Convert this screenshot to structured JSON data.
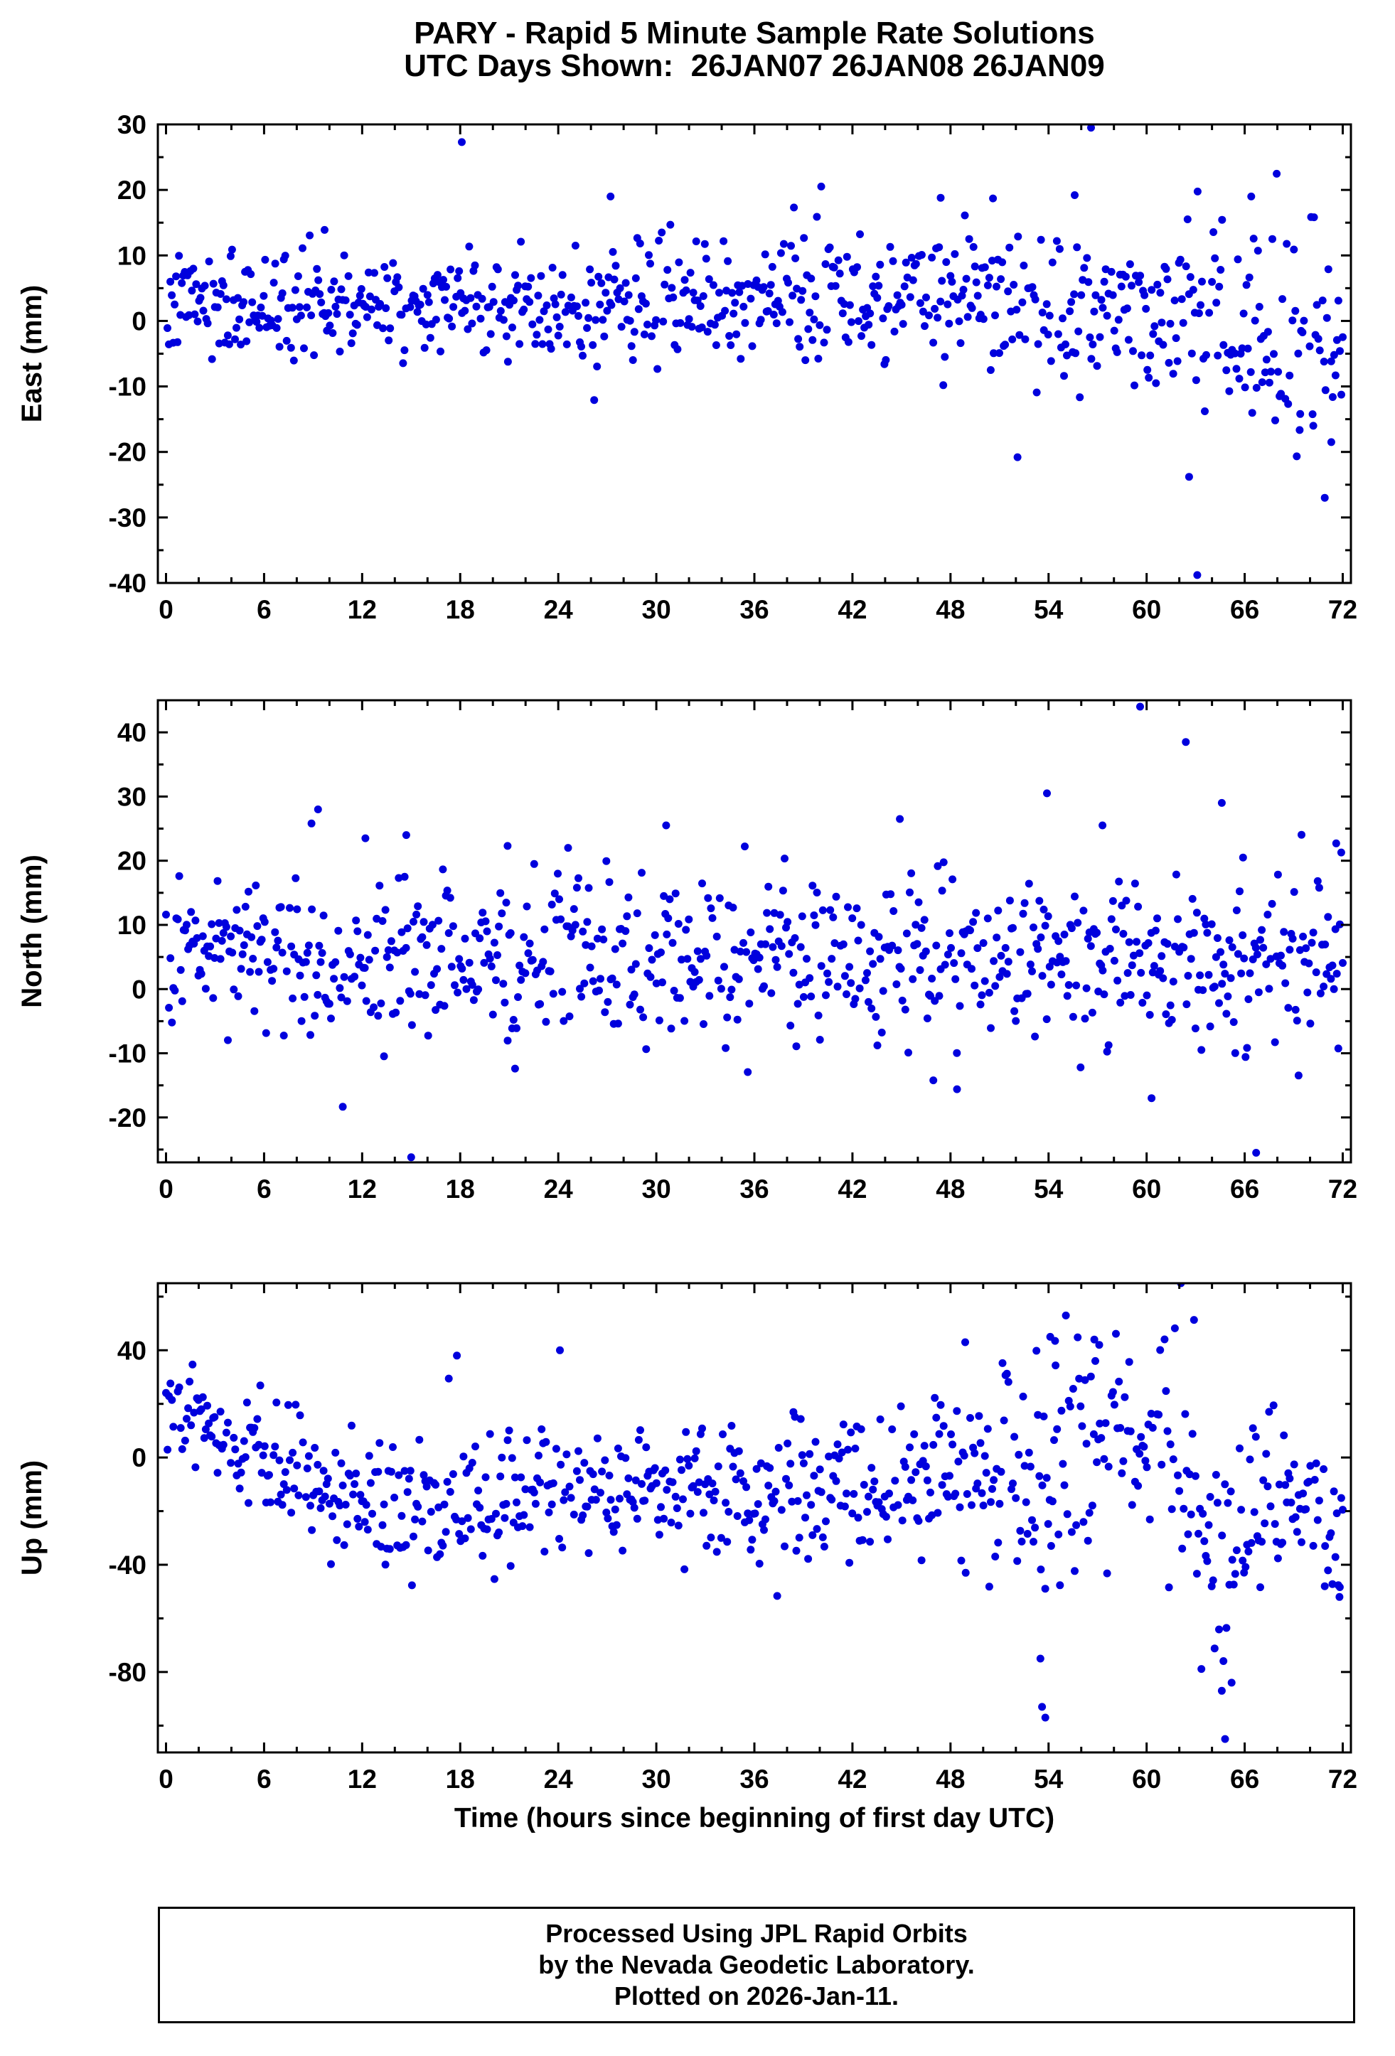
{
  "title": {
    "line1": "PARY - Rapid 5 Minute Sample Rate Solutions",
    "line2": "UTC Days Shown:  26JAN07 26JAN08 26JAN09"
  },
  "xlabel": "Time (hours since beginning of first day UTC)",
  "footer": {
    "line1": "Processed Using JPL Rapid Orbits",
    "line2": "by the Nevada Geodetic Laboratory.",
    "line3": "Plotted on 2026-Jan-11."
  },
  "style": {
    "point_color": "#0000DD",
    "point_radius": 5.5,
    "axis_color": "#000000",
    "frame_width": 3,
    "major_tick_len": 14,
    "minor_tick_len": 8
  },
  "chart_data": [
    {
      "type": "scatter",
      "name": "east",
      "ylabel": "East (mm)",
      "xlim": [
        -0.5,
        72.5
      ],
      "ylim": [
        -40,
        30
      ],
      "xticks": [
        0,
        6,
        12,
        18,
        24,
        30,
        36,
        42,
        48,
        54,
        60,
        66,
        72
      ],
      "yticks": [
        -40,
        -30,
        -20,
        -10,
        0,
        10,
        20,
        30
      ],
      "xminor": 2,
      "yminor": 5,
      "n_points": 820,
      "seed": 7,
      "drop_rate": 0.08,
      "trend": {
        "x": [
          0,
          12,
          24,
          36,
          48,
          60,
          66,
          72
        ],
        "mean": [
          2.5,
          2.5,
          2.5,
          3.5,
          3.0,
          1.5,
          0.0,
          -2.0
        ],
        "sd": [
          3.8,
          4.2,
          4.5,
          4.8,
          5.0,
          6.5,
          7.0,
          8.5
        ]
      },
      "outliers": [
        [
          18.1,
          27.3
        ],
        [
          56.6,
          29.5
        ],
        [
          63.1,
          -38.8
        ],
        [
          70.9,
          -27.0
        ],
        [
          62.6,
          -23.8
        ],
        [
          52.1,
          -20.8
        ],
        [
          27.2,
          19.0
        ],
        [
          50.6,
          18.7
        ],
        [
          55.6,
          19.2
        ],
        [
          66.4,
          19.0
        ],
        [
          9.7,
          13.9
        ],
        [
          47.4,
          18.8
        ],
        [
          71.3,
          -18.5
        ],
        [
          70.2,
          -16.0
        ],
        [
          69.4,
          -14.2
        ]
      ]
    },
    {
      "type": "scatter",
      "name": "north",
      "ylabel": "North (mm)",
      "xlim": [
        -0.5,
        72.5
      ],
      "ylim": [
        -27,
        45
      ],
      "xticks": [
        0,
        6,
        12,
        18,
        24,
        30,
        36,
        42,
        48,
        54,
        60,
        66,
        72
      ],
      "yticks": [
        -20,
        -10,
        0,
        10,
        20,
        30,
        40
      ],
      "xminor": 2,
      "yminor": 5,
      "n_points": 800,
      "seed": 13,
      "drop_rate": 0.07,
      "trend": {
        "x": [
          0,
          12,
          24,
          36,
          48,
          60,
          72
        ],
        "mean": [
          4.5,
          5.0,
          5.0,
          5.5,
          4.0,
          5.0,
          5.5
        ],
        "sd": [
          5.5,
          6.5,
          6.5,
          6.0,
          6.0,
          6.5,
          6.5
        ]
      },
      "outliers": [
        [
          9.3,
          28.0
        ],
        [
          15.0,
          -26.2
        ],
        [
          59.6,
          44.0
        ],
        [
          62.4,
          38.5
        ],
        [
          53.9,
          30.5
        ],
        [
          66.7,
          -25.5
        ],
        [
          8.9,
          25.8
        ],
        [
          14.7,
          24.0
        ],
        [
          12.2,
          23.5
        ],
        [
          57.3,
          25.5
        ],
        [
          64.6,
          29.0
        ],
        [
          30.6,
          25.5
        ],
        [
          24.6,
          22.0
        ],
        [
          20.9,
          22.3
        ],
        [
          48.4,
          -15.6
        ],
        [
          60.3,
          -17.0
        ],
        [
          44.9,
          26.5
        ],
        [
          65.9,
          20.5
        ],
        [
          71.6,
          22.7
        ]
      ]
    },
    {
      "type": "scatter",
      "name": "up",
      "ylabel": "Up (mm)",
      "xlim": [
        -0.5,
        72.5
      ],
      "ylim": [
        -110,
        65
      ],
      "xticks": [
        0,
        6,
        12,
        18,
        24,
        30,
        36,
        42,
        48,
        54,
        60,
        66,
        72
      ],
      "yticks": [
        -80,
        -40,
        0,
        40
      ],
      "xminor": 2,
      "yminor": 20,
      "n_points": 800,
      "seed": 42,
      "drop_rate": 0.07,
      "trend": {
        "x": [
          0,
          2,
          6,
          12,
          16,
          22,
          30,
          40,
          47,
          51,
          54,
          57,
          60,
          62,
          64,
          66,
          68,
          70,
          72
        ],
        "mean": [
          18,
          14,
          0,
          -18,
          -20,
          -12,
          -10,
          -15,
          -8,
          -5,
          -10,
          10,
          5,
          0,
          -35,
          -30,
          -12,
          -18,
          -35
        ],
        "sd": [
          8,
          10,
          12,
          12,
          12,
          13,
          13,
          13,
          14,
          20,
          28,
          20,
          16,
          22,
          25,
          18,
          14,
          14,
          10
        ]
      },
      "outliers": [
        [
          53.6,
          -93.0
        ],
        [
          53.8,
          -97.0
        ],
        [
          62.1,
          65.0
        ],
        [
          64.8,
          -105.0
        ],
        [
          64.6,
          -87.0
        ],
        [
          54.1,
          45.0
        ],
        [
          54.4,
          43.5
        ],
        [
          56.8,
          44.0
        ],
        [
          57.1,
          42.0
        ],
        [
          48.9,
          43.0
        ],
        [
          24.1,
          40.0
        ],
        [
          17.8,
          38.0
        ],
        [
          53.5,
          -75.0
        ],
        [
          65.2,
          -84.0
        ],
        [
          71.8,
          -52.0
        ],
        [
          70.9,
          -48.0
        ]
      ]
    }
  ]
}
